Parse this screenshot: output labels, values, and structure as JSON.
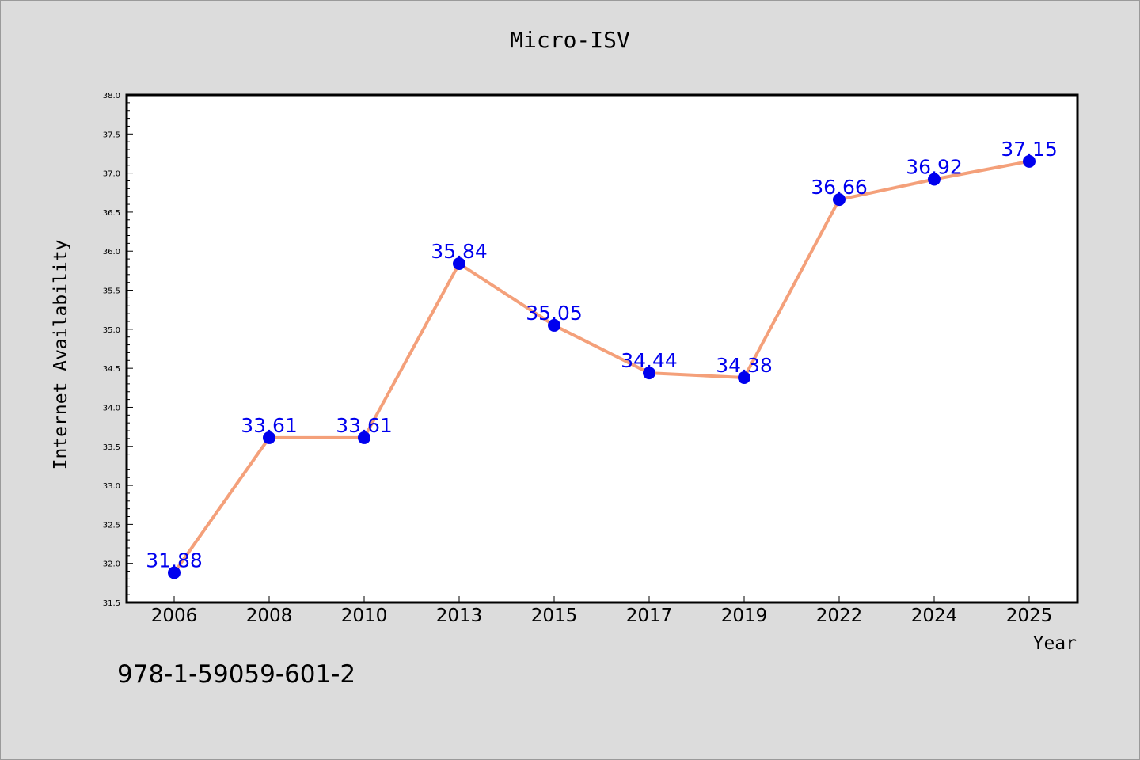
{
  "chart_data": {
    "type": "line",
    "title": "Micro-ISV",
    "xlabel": "Year",
    "ylabel": "Internet Availability",
    "categories": [
      "2006",
      "2008",
      "2010",
      "2013",
      "2015",
      "2017",
      "2019",
      "2022",
      "2024",
      "2025"
    ],
    "series": [
      {
        "values": [
          31.88,
          33.61,
          33.61,
          35.84,
          35.05,
          34.44,
          34.38,
          36.66,
          36.92,
          37.15
        ],
        "line_color": "#f4a07a",
        "marker_color": "#0000ee",
        "label_color": "#0000ee"
      }
    ],
    "data_labels": [
      "31.88",
      "33.61",
      "33.61",
      "35.84",
      "35.05",
      "34.44",
      "34.38",
      "36.66",
      "36.92",
      "37.15"
    ],
    "ylim": [
      31.5,
      38.0
    ],
    "yticks": [
      "31.5",
      "32.0",
      "32.5",
      "33.0",
      "33.5",
      "34.0",
      "34.5",
      "35.0",
      "35.5",
      "36.0",
      "36.5",
      "37.0",
      "37.5",
      "38.0"
    ],
    "grid": false,
    "legend": "none"
  },
  "annotation": "978-1-59059-601-2"
}
